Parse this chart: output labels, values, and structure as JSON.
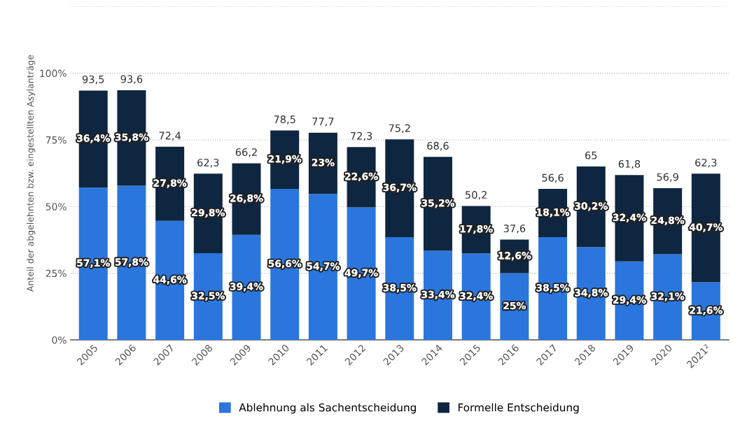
{
  "chart_data": {
    "type": "bar",
    "stacked": true,
    "ylabel": "Anteil der abgelehnten bzw. eingestellten Asylanträge",
    "categories": [
      "2005",
      "2006",
      "2007",
      "2008",
      "2009",
      "2010",
      "2011",
      "2012",
      "2013",
      "2014",
      "2015",
      "2016",
      "2017",
      "2018",
      "2019",
      "2020",
      "2021²"
    ],
    "series": [
      {
        "name": "Ablehnung als Sachentscheidung",
        "color": "#2a76dd",
        "values": [
          57.1,
          57.8,
          44.6,
          32.5,
          39.4,
          56.6,
          54.7,
          49.7,
          38.5,
          33.4,
          32.4,
          25,
          38.5,
          34.8,
          29.4,
          32.1,
          21.6
        ],
        "value_labels": [
          "57,1%",
          "57,8%",
          "44,6%",
          "32,5%",
          "39,4%",
          "56,6%",
          "54,7%",
          "49,7%",
          "38,5%",
          "33,4%",
          "32,4%",
          "25%",
          "38,5%",
          "34,8%",
          "29,4%",
          "32,1%",
          "21,6%"
        ]
      },
      {
        "name": "Formelle Entscheidung",
        "color": "#0f2640",
        "values": [
          36.4,
          35.8,
          27.8,
          29.8,
          26.8,
          21.9,
          23,
          22.6,
          36.7,
          35.2,
          17.8,
          12.6,
          18.1,
          30.2,
          32.4,
          24.8,
          40.7
        ],
        "value_labels": [
          "36,4%",
          "35,8%",
          "27,8%",
          "29,8%",
          "26,8%",
          "21,9%",
          "23%",
          "22,6%",
          "36,7%",
          "35,2%",
          "17,8%",
          "12,6%",
          "18,1%",
          "30,2%",
          "32,4%",
          "24,8%",
          "40,7%"
        ]
      }
    ],
    "totals": [
      "93,5",
      "93,6",
      "72,4",
      "62,3",
      "66,2",
      "78,5",
      "77,7",
      "72,3",
      "75,2",
      "68,6",
      "50,2",
      "37,6",
      "56,6",
      "65",
      "61,8",
      "56,9",
      "62,3"
    ],
    "ylim": [
      0,
      125
    ],
    "yticks": [
      {
        "value": 0,
        "label": "0%"
      },
      {
        "value": 25,
        "label": "25%"
      },
      {
        "value": 50,
        "label": "50%"
      },
      {
        "value": 75,
        "label": "75%"
      },
      {
        "value": 100,
        "label": "100%"
      },
      {
        "value": 125,
        "label": null
      }
    ],
    "grid": "y",
    "legend": "bottom"
  }
}
